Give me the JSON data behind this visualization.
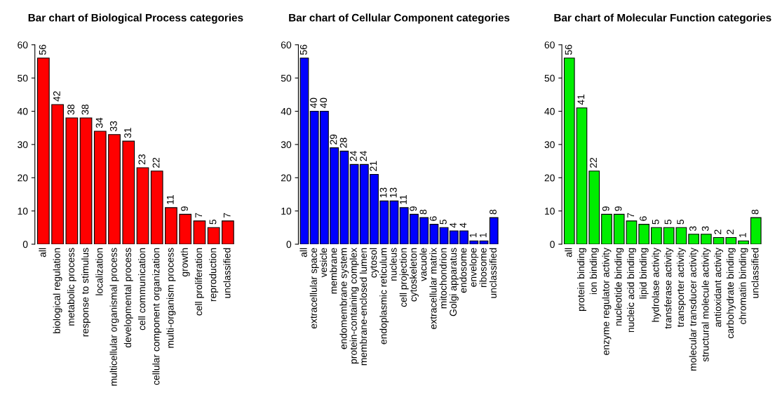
{
  "chart_data": [
    {
      "type": "bar",
      "title": "Bar chart of Biological Process categories",
      "categories": [
        "all",
        "biological regulation",
        "metabolic process",
        "response to stimulus",
        "localization",
        "multicellular organismal process",
        "developmental process",
        "cell communication",
        "cellular component organization",
        "multi-organism process",
        "growth",
        "cell proliferation",
        "reproduction",
        "unclassified"
      ],
      "values": [
        56,
        42,
        38,
        38,
        34,
        33,
        31,
        23,
        22,
        11,
        9,
        7,
        5,
        7
      ],
      "color": "#ff0000",
      "ylim": [
        0,
        60
      ],
      "yticks": [
        0,
        10,
        20,
        30,
        40,
        50,
        60
      ],
      "data_labels": true,
      "grid": false
    },
    {
      "type": "bar",
      "title": "Bar chart of Cellular Component categories",
      "categories": [
        "all",
        "extracellular space",
        "vesicle",
        "membrane",
        "endomembrane system",
        "protein-containing complex",
        "membrane-enclosed lumen",
        "cytosol",
        "endoplasmic reticulum",
        "nucleus",
        "cell projection",
        "cytoskeleton",
        "vacuole",
        "extracellular matrix",
        "mitochondrion",
        "Golgi apparatus",
        "endosome",
        "envelope",
        "ribosome",
        "unclassified"
      ],
      "values": [
        56,
        40,
        40,
        29,
        28,
        24,
        24,
        21,
        13,
        13,
        11,
        9,
        8,
        6,
        5,
        4,
        4,
        1,
        1,
        8
      ],
      "color": "#0000ff",
      "ylim": [
        0,
        60
      ],
      "yticks": [
        0,
        10,
        20,
        30,
        40,
        50,
        60
      ],
      "data_labels": true,
      "grid": false
    },
    {
      "type": "bar",
      "title": "Bar chart of Molecular Function categories",
      "categories": [
        "all",
        "protein binding",
        "ion binding",
        "enzyme regulator activity",
        "nucleotide binding",
        "nucleic acid binding",
        "lipid binding",
        "hydrolase activity",
        "transferase activity",
        "transporter activity",
        "molecular transducer activity",
        "structural molecule activity",
        "antioxidant activity",
        "carbohydrate binding",
        "chromatin binding",
        "unclassified"
      ],
      "values": [
        56,
        41,
        22,
        9,
        9,
        7,
        6,
        5,
        5,
        5,
        3,
        3,
        2,
        2,
        1,
        8
      ],
      "color": "#00ee00",
      "ylim": [
        0,
        60
      ],
      "yticks": [
        0,
        10,
        20,
        30,
        40,
        50,
        60
      ],
      "data_labels": true,
      "grid": false
    }
  ]
}
